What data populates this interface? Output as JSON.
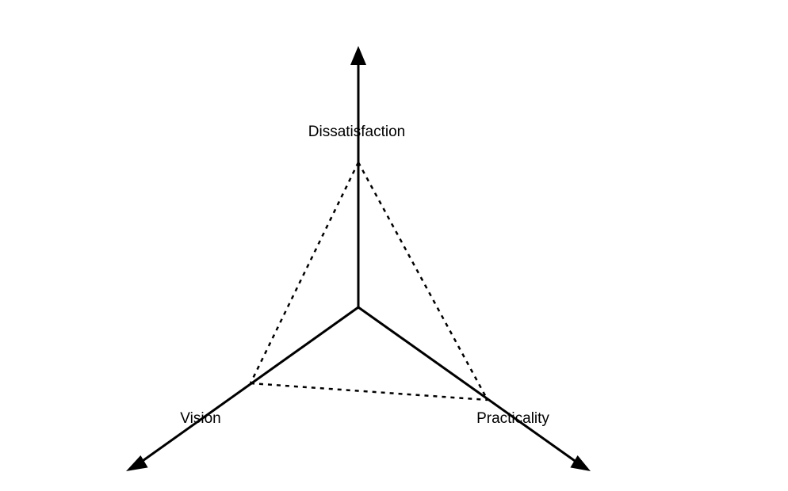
{
  "diagram": {
    "axes": [
      {
        "id": "dissatisfaction",
        "label": "Dissatisfaction"
      },
      {
        "id": "vision",
        "label": "Vision"
      },
      {
        "id": "practicality",
        "label": "Practicality"
      }
    ],
    "colors": {
      "line": "#000000",
      "background": "#ffffff"
    }
  }
}
